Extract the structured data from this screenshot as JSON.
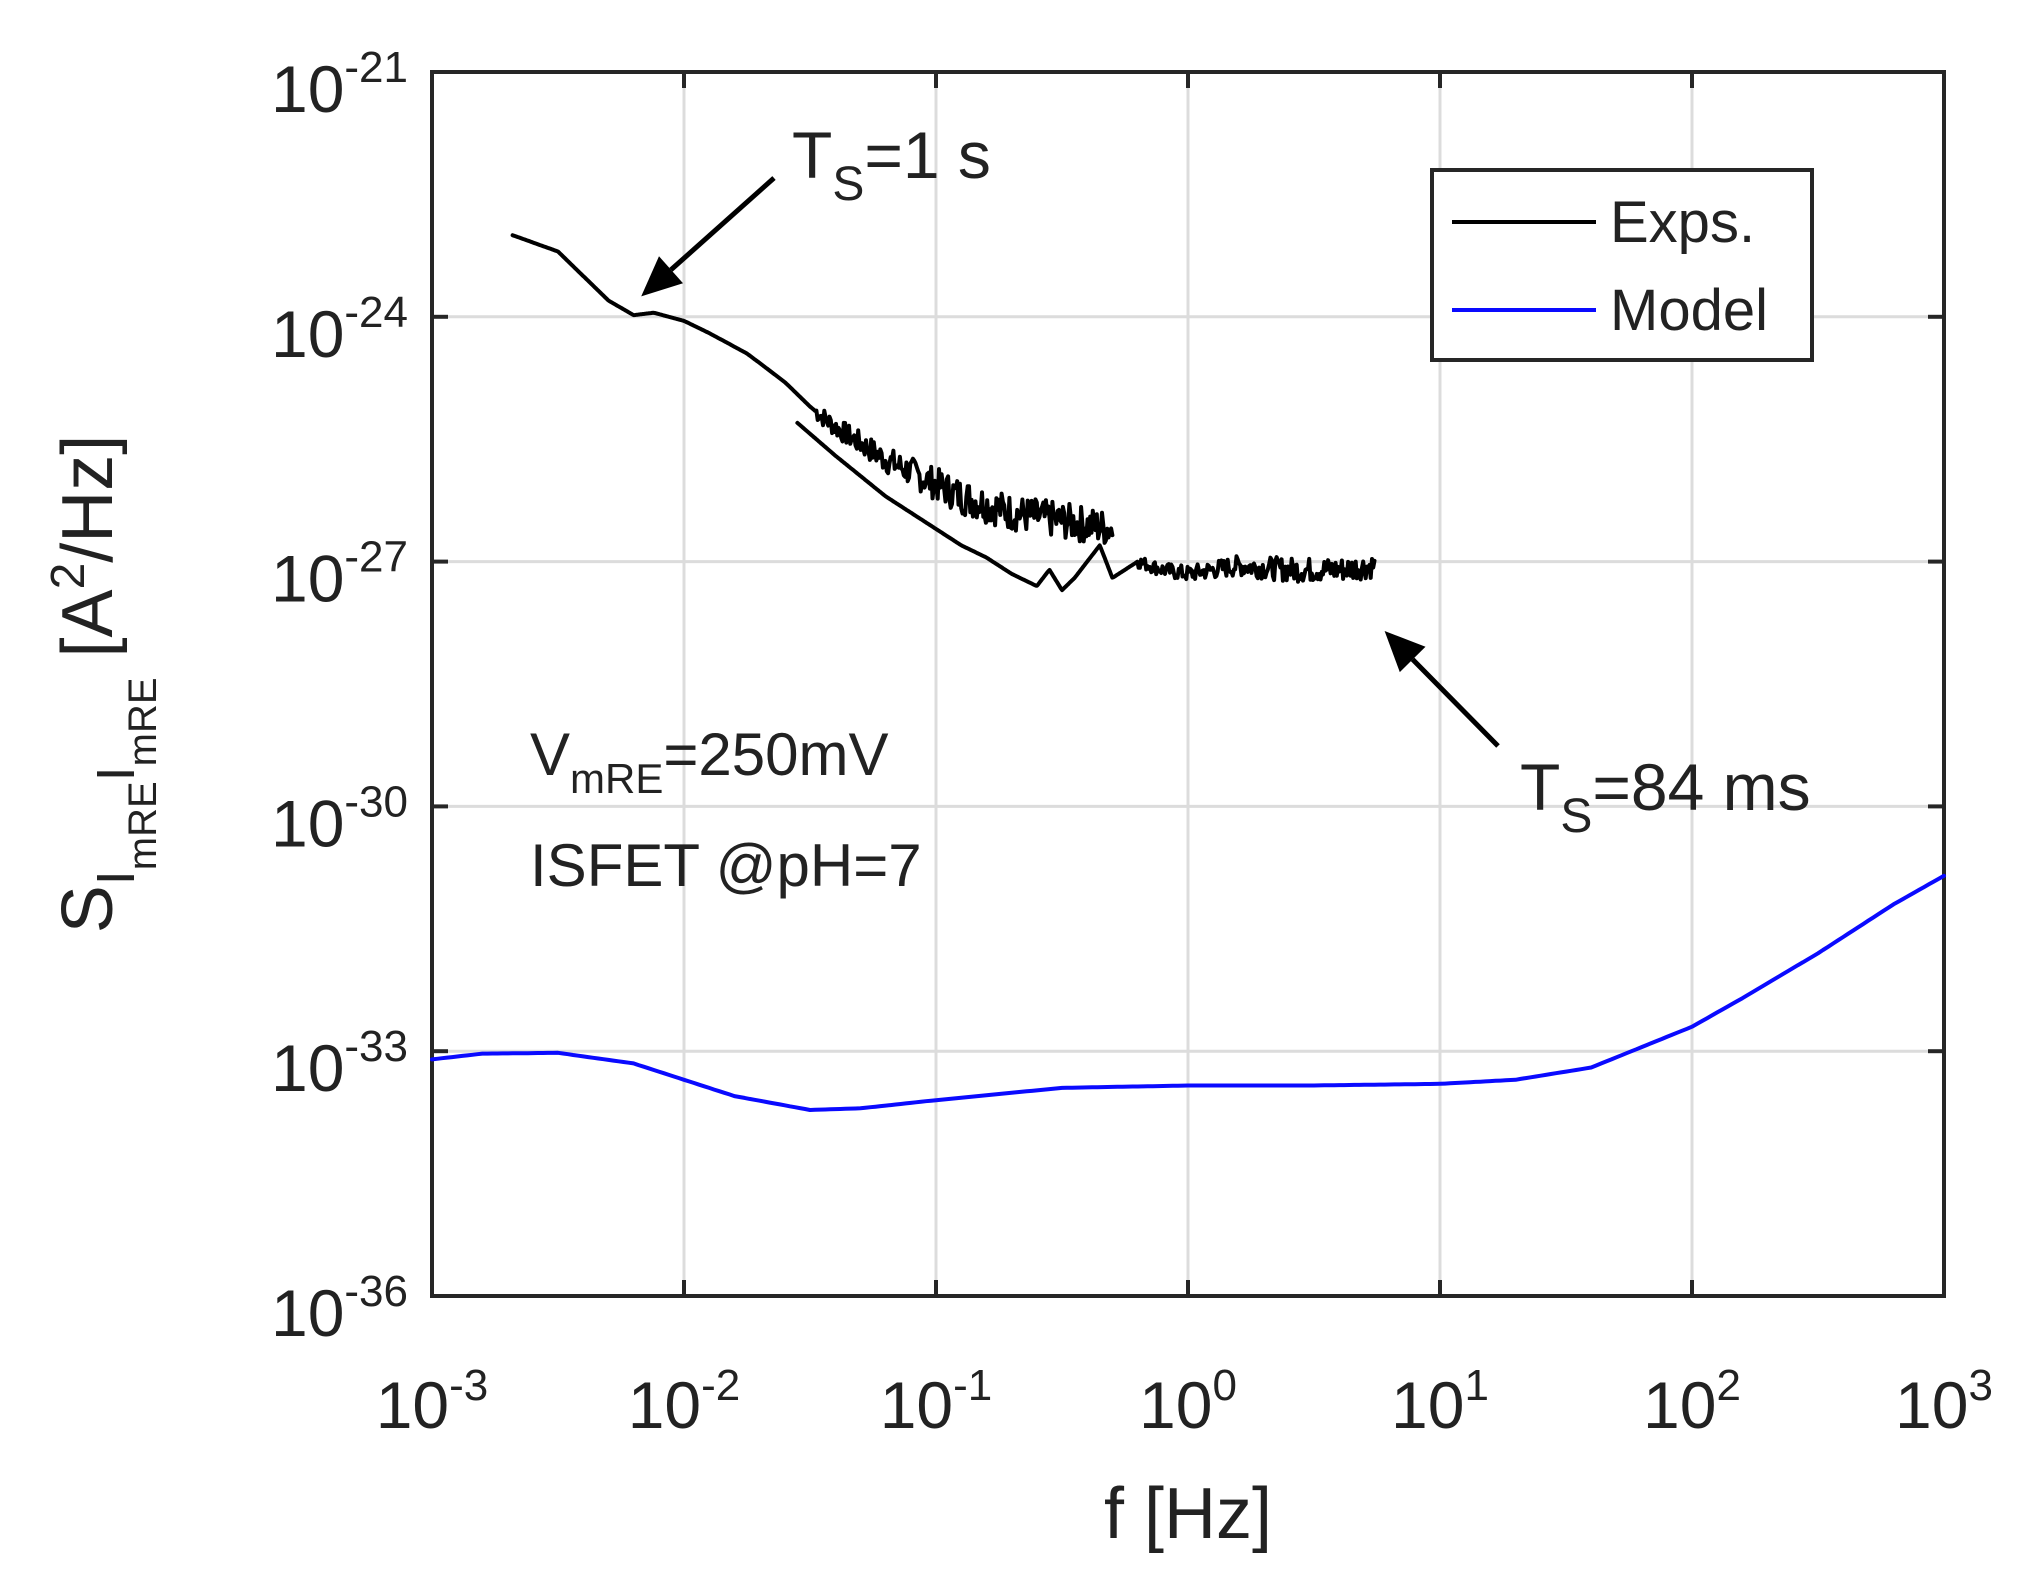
{
  "chart_data": {
    "type": "line",
    "xscale": "log",
    "yscale": "log",
    "xlim_exp": [
      -3,
      3
    ],
    "ylim_exp": [
      -36,
      -21
    ],
    "xlabel": "f [Hz]",
    "ylabel": {
      "main": "S",
      "sub1": "I",
      "sub1_sub": "mRE",
      "sub2": "I",
      "sub2_sub": "mRE",
      "unit_open": "[A",
      "unit_sup": "2",
      "unit_close": "/Hz]"
    },
    "x_ticks": [
      {
        "base": "10",
        "exp": "-3"
      },
      {
        "base": "10",
        "exp": "-2"
      },
      {
        "base": "10",
        "exp": "-1"
      },
      {
        "base": "10",
        "exp": "0"
      },
      {
        "base": "10",
        "exp": "1"
      },
      {
        "base": "10",
        "exp": "2"
      },
      {
        "base": "10",
        "exp": "3"
      }
    ],
    "y_ticks": [
      {
        "base": "10",
        "exp": "-21"
      },
      {
        "base": "10",
        "exp": "-24"
      },
      {
        "base": "10",
        "exp": "-27"
      },
      {
        "base": "10",
        "exp": "-30"
      },
      {
        "base": "10",
        "exp": "-33"
      },
      {
        "base": "10",
        "exp": "-36"
      }
    ],
    "grid": true,
    "legend_position": "top-right",
    "series": [
      {
        "name": "Exps.",
        "color": "#000000",
        "segment": "Ts=1 s",
        "noise_from_log_f": -1.48,
        "noise_amp_decades": 0.45,
        "log_f": [
          -2.68,
          -2.5,
          -2.4,
          -2.3,
          -2.2,
          -2.12,
          -2.0,
          -1.9,
          -1.75,
          -1.6,
          -1.5,
          -1.4,
          -1.3,
          -1.2,
          -1.1,
          -1.0,
          -0.9,
          -0.8,
          -0.7,
          -0.6,
          -0.5,
          -0.4,
          -0.3
        ],
        "log_s": [
          -23.0,
          -23.2,
          -23.5,
          -23.8,
          -23.98,
          -23.95,
          -24.05,
          -24.2,
          -24.45,
          -24.8,
          -25.1,
          -25.35,
          -25.55,
          -25.75,
          -25.9,
          -26.05,
          -26.2,
          -26.3,
          -26.4,
          -26.45,
          -26.5,
          -26.55,
          -26.6
        ]
      },
      {
        "name": "Exps.",
        "color": "#000000",
        "segment": "Ts=84 ms",
        "noise_from_log_f": -0.2,
        "noise_amp_decades": 0.3,
        "log_f": [
          -1.55,
          -1.4,
          -1.3,
          -1.2,
          -1.1,
          -1.0,
          -0.9,
          -0.8,
          -0.7,
          -0.6,
          -0.55,
          -0.5,
          -0.45,
          -0.35,
          -0.3,
          -0.2,
          -0.1,
          0.0,
          0.2,
          0.4,
          0.6,
          0.74
        ],
        "log_s": [
          -25.3,
          -25.7,
          -25.95,
          -26.2,
          -26.4,
          -26.6,
          -26.8,
          -26.95,
          -27.15,
          -27.3,
          -27.1,
          -27.35,
          -27.2,
          -26.8,
          -27.2,
          -27.0,
          -27.1,
          -27.15,
          -27.05,
          -27.1,
          -27.1,
          -27.05
        ]
      },
      {
        "name": "Model",
        "color": "#0a0aff",
        "log_f": [
          -3.0,
          -2.8,
          -2.5,
          -2.2,
          -2.0,
          -1.8,
          -1.5,
          -1.3,
          -1.0,
          -0.5,
          0.0,
          0.5,
          1.0,
          1.3,
          1.6,
          1.8,
          2.0,
          2.2,
          2.5,
          2.8,
          3.0
        ],
        "log_s": [
          -33.1,
          -33.03,
          -33.02,
          -33.15,
          -33.35,
          -33.55,
          -33.72,
          -33.7,
          -33.6,
          -33.45,
          -33.42,
          -33.42,
          -33.4,
          -33.35,
          -33.2,
          -32.95,
          -32.7,
          -32.35,
          -31.8,
          -31.2,
          -30.85
        ]
      }
    ],
    "annotations": {
      "ts1": {
        "main": "T",
        "sub": "S",
        "rest": "=1 s",
        "target_log_f": -2.17,
        "target_log_s": -23.75
      },
      "ts84": {
        "main": "T",
        "sub": "S",
        "rest": "=84 ms",
        "target_log_f": 0.78,
        "target_log_s": -27.85
      },
      "vmre": {
        "main": "V",
        "sub": "mRE",
        "rest": "=250mV"
      },
      "isfet": "ISFET @pH=7"
    },
    "legend": [
      {
        "label": "Exps.",
        "color": "#000000"
      },
      {
        "label": "Model",
        "color": "#0a0aff"
      }
    ]
  }
}
